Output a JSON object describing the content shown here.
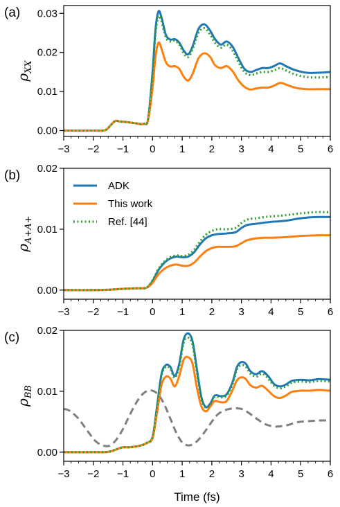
{
  "chart_data": [
    {
      "type": "line",
      "panel_label": "(a)",
      "ylabel_base": "ρ",
      "ylabel_sub": "XX",
      "xlim": [
        -3,
        6
      ],
      "ylim": [
        -0.0015,
        0.032
      ],
      "x_ticks": [
        -3,
        -2,
        -1,
        0,
        1,
        2,
        3,
        4,
        5,
        6
      ],
      "x_tick_labels": [
        "−3",
        "−2",
        "−1",
        "0",
        "1",
        "2",
        "3",
        "4",
        "5",
        "6"
      ],
      "y_ticks": [
        0,
        0.01,
        0.02,
        0.03
      ],
      "y_tick_labels": [
        "0.00",
        "0.01",
        "0.02",
        "0.03"
      ],
      "series": [
        {
          "name": "ADK",
          "color": "#1f77b4",
          "style": "solid",
          "x": [
            -3,
            -2,
            -1.6,
            -1.4,
            -1.25,
            -1.1,
            -0.9,
            -0.6,
            -0.3,
            -0.15,
            0,
            0.1,
            0.2,
            0.3,
            0.45,
            0.6,
            0.75,
            0.9,
            1.05,
            1.2,
            1.35,
            1.55,
            1.75,
            1.95,
            2.1,
            2.3,
            2.5,
            2.7,
            2.9,
            3.1,
            3.3,
            3.5,
            3.7,
            3.9,
            4.1,
            4.3,
            4.5,
            4.8,
            5.2,
            5.6,
            6
          ],
          "y": [
            0,
            0,
            0.0001,
            0.0015,
            0.0025,
            0.0023,
            0.0022,
            0.0019,
            0.0017,
            0.003,
            0.015,
            0.026,
            0.0305,
            0.029,
            0.0245,
            0.0233,
            0.0234,
            0.0225,
            0.0205,
            0.0195,
            0.0215,
            0.026,
            0.0272,
            0.0255,
            0.0235,
            0.022,
            0.0228,
            0.0215,
            0.0185,
            0.0158,
            0.015,
            0.0155,
            0.016,
            0.016,
            0.0165,
            0.0172,
            0.0165,
            0.0155,
            0.0148,
            0.0148,
            0.015
          ]
        },
        {
          "name": "This work",
          "color": "#ff7f0e",
          "style": "solid",
          "x": [
            -3,
            -2,
            -1.6,
            -1.4,
            -1.25,
            -1.1,
            -0.9,
            -0.6,
            -0.3,
            -0.15,
            0,
            0.1,
            0.2,
            0.3,
            0.45,
            0.6,
            0.75,
            0.9,
            1.05,
            1.2,
            1.35,
            1.55,
            1.75,
            1.95,
            2.1,
            2.3,
            2.5,
            2.7,
            2.9,
            3.1,
            3.3,
            3.5,
            3.7,
            3.9,
            4.1,
            4.3,
            4.5,
            4.8,
            5.2,
            5.6,
            6
          ],
          "y": [
            0,
            0,
            0.0001,
            0.0015,
            0.0025,
            0.0023,
            0.0022,
            0.0019,
            0.0017,
            0.0028,
            0.011,
            0.019,
            0.0225,
            0.021,
            0.0175,
            0.0164,
            0.0165,
            0.0158,
            0.0138,
            0.0128,
            0.0145,
            0.0185,
            0.0198,
            0.0188,
            0.0168,
            0.016,
            0.0165,
            0.0152,
            0.0128,
            0.0112,
            0.0105,
            0.0108,
            0.011,
            0.011,
            0.0115,
            0.0122,
            0.0118,
            0.011,
            0.0106,
            0.0106,
            0.0106
          ]
        },
        {
          "name": "Ref. [44]",
          "color": "#2ca02c",
          "style": "dotted",
          "x": [
            -3,
            -2,
            -1.6,
            -1.4,
            -1.25,
            -1.1,
            -0.9,
            -0.6,
            -0.3,
            -0.15,
            0,
            0.1,
            0.2,
            0.3,
            0.45,
            0.6,
            0.75,
            0.9,
            1.05,
            1.2,
            1.35,
            1.55,
            1.75,
            1.95,
            2.1,
            2.3,
            2.5,
            2.7,
            2.9,
            3.1,
            3.3,
            3.5,
            3.7,
            3.9,
            4.1,
            4.3,
            4.5,
            4.8,
            5.2,
            5.6,
            6
          ],
          "y": [
            0,
            0,
            0.0001,
            0.0015,
            0.0025,
            0.0023,
            0.0022,
            0.0019,
            0.0017,
            0.003,
            0.0145,
            0.025,
            0.0292,
            0.028,
            0.0238,
            0.0228,
            0.023,
            0.022,
            0.0198,
            0.0188,
            0.0208,
            0.025,
            0.0262,
            0.0245,
            0.0225,
            0.0212,
            0.022,
            0.0205,
            0.0175,
            0.015,
            0.0142,
            0.0146,
            0.015,
            0.015,
            0.0154,
            0.016,
            0.0154,
            0.0144,
            0.0137,
            0.0136,
            0.0137
          ]
        }
      ]
    },
    {
      "type": "line",
      "panel_label": "(b)",
      "ylabel_base": "ρ",
      "ylabel_sub": "A+A+",
      "xlim": [
        -3,
        6
      ],
      "ylim": [
        -0.0015,
        0.02
      ],
      "x_ticks": [
        -3,
        -2,
        -1,
        0,
        1,
        2,
        3,
        4,
        5,
        6
      ],
      "x_tick_labels": [
        "−3",
        "−2",
        "−1",
        "0",
        "1",
        "2",
        "3",
        "4",
        "5",
        "6"
      ],
      "y_ticks": [
        0,
        0.01,
        0.02
      ],
      "y_tick_labels": [
        "0.00",
        "0.01",
        "0.02"
      ],
      "legend": {
        "placement": "upper-left",
        "entries": [
          "ADK",
          "This work",
          "Ref. [44]"
        ]
      },
      "series": [
        {
          "name": "ADK",
          "color": "#1f77b4",
          "style": "solid",
          "x": [
            -3,
            -2,
            -1.5,
            -1,
            -0.5,
            -0.2,
            0,
            0.2,
            0.4,
            0.6,
            0.8,
            1.0,
            1.2,
            1.4,
            1.6,
            1.8,
            2.0,
            2.2,
            2.5,
            2.8,
            3.0,
            3.2,
            3.5,
            3.8,
            4.0,
            4.5,
            5,
            5.5,
            6
          ],
          "y": [
            0,
            0,
            5e-05,
            0.0002,
            0.0003,
            0.0004,
            0.0015,
            0.0033,
            0.0045,
            0.0052,
            0.0055,
            0.0054,
            0.0055,
            0.0062,
            0.0075,
            0.0085,
            0.009,
            0.0092,
            0.0093,
            0.0095,
            0.0102,
            0.0107,
            0.0109,
            0.0111,
            0.0112,
            0.0114,
            0.0118,
            0.012,
            0.012
          ]
        },
        {
          "name": "This work",
          "color": "#ff7f0e",
          "style": "solid",
          "x": [
            -3,
            -2,
            -1.5,
            -1,
            -0.5,
            -0.2,
            0,
            0.2,
            0.4,
            0.6,
            0.8,
            1.0,
            1.2,
            1.4,
            1.6,
            1.8,
            2.0,
            2.2,
            2.5,
            2.8,
            3.0,
            3.2,
            3.5,
            3.8,
            4.0,
            4.5,
            5,
            5.5,
            6
          ],
          "y": [
            0,
            0,
            5e-05,
            0.0002,
            0.0003,
            0.0004,
            0.0012,
            0.0026,
            0.0035,
            0.004,
            0.0042,
            0.004,
            0.004,
            0.0045,
            0.0055,
            0.0064,
            0.0069,
            0.0071,
            0.0071,
            0.0072,
            0.0077,
            0.0082,
            0.0085,
            0.0086,
            0.0086,
            0.0087,
            0.0089,
            0.009,
            0.009
          ]
        },
        {
          "name": "Ref. [44]",
          "color": "#2ca02c",
          "style": "dotted",
          "x": [
            -3,
            -2,
            -1.5,
            -1,
            -0.5,
            -0.2,
            0,
            0.2,
            0.4,
            0.6,
            0.8,
            1.0,
            1.2,
            1.4,
            1.6,
            1.8,
            2.0,
            2.2,
            2.5,
            2.8,
            3.0,
            3.2,
            3.5,
            3.8,
            4.0,
            4.5,
            5,
            5.5,
            6
          ],
          "y": [
            0,
            0,
            5e-05,
            0.0002,
            0.0003,
            0.0004,
            0.0016,
            0.0035,
            0.0047,
            0.0054,
            0.0057,
            0.0056,
            0.0058,
            0.0066,
            0.008,
            0.0091,
            0.0097,
            0.01,
            0.01,
            0.0102,
            0.011,
            0.0116,
            0.0118,
            0.012,
            0.0121,
            0.0123,
            0.0126,
            0.0128,
            0.0128
          ]
        }
      ]
    },
    {
      "type": "line",
      "panel_label": "(c)",
      "ylabel_base": "ρ",
      "ylabel_sub": "BB",
      "xlabel": "Time (fs)",
      "xlim": [
        -3,
        6
      ],
      "ylim": [
        -0.0015,
        0.02
      ],
      "x_ticks": [
        -3,
        -2,
        -1,
        0,
        1,
        2,
        3,
        4,
        5,
        6
      ],
      "x_tick_labels": [
        "−3",
        "−2",
        "−1",
        "0",
        "1",
        "2",
        "3",
        "4",
        "5",
        "6"
      ],
      "y_ticks": [
        0,
        0.01,
        0.02
      ],
      "y_tick_labels": [
        "0.00",
        "0.01",
        "0.02"
      ],
      "series": [
        {
          "color": "#7f7f7f",
          "style": "dashed",
          "x": [
            -3,
            -2.8,
            -2.5,
            -2.2,
            -1.9,
            -1.6,
            -1.4,
            -1.2,
            -1.0,
            -0.8,
            -0.6,
            -0.4,
            -0.2,
            0,
            0.2,
            0.4,
            0.6,
            0.8,
            1.0,
            1.2,
            1.4,
            1.6,
            1.8,
            2.0,
            2.2,
            2.4,
            2.6,
            2.8,
            3.0,
            3.2,
            3.4,
            3.6,
            3.8,
            4.0,
            4.2,
            4.4,
            4.6,
            4.8,
            5.0,
            5.3,
            5.6,
            6
          ],
          "y": [
            0.0071,
            0.0068,
            0.0055,
            0.0035,
            0.0017,
            0.001,
            0.0012,
            0.0022,
            0.0038,
            0.0058,
            0.0077,
            0.0092,
            0.01,
            0.0101,
            0.0094,
            0.0078,
            0.0055,
            0.0032,
            0.0016,
            0.0011,
            0.0014,
            0.0023,
            0.0036,
            0.005,
            0.0062,
            0.0068,
            0.0071,
            0.0072,
            0.0071,
            0.0066,
            0.0059,
            0.0052,
            0.0046,
            0.0043,
            0.0042,
            0.0043,
            0.0045,
            0.0048,
            0.005,
            0.0051,
            0.0052,
            0.0052
          ]
        },
        {
          "name": "ADK",
          "color": "#1f77b4",
          "style": "solid",
          "x": [
            -3,
            -2,
            -1.5,
            -1.2,
            -1.0,
            -0.8,
            -0.6,
            -0.4,
            -0.2,
            0,
            0.15,
            0.3,
            0.45,
            0.6,
            0.75,
            0.9,
            1.05,
            1.2,
            1.35,
            1.5,
            1.65,
            1.8,
            1.95,
            2.1,
            2.3,
            2.5,
            2.7,
            2.85,
            3.0,
            3.15,
            3.3,
            3.5,
            3.7,
            3.9,
            4.1,
            4.3,
            4.5,
            4.7,
            5.0,
            5.3,
            5.6,
            6
          ],
          "y": [
            0,
            0,
            5e-05,
            0.0005,
            0.0008,
            0.0008,
            0.0009,
            0.0011,
            0.0015,
            0.0025,
            0.0075,
            0.0128,
            0.0143,
            0.014,
            0.0125,
            0.0145,
            0.0185,
            0.0195,
            0.0182,
            0.0135,
            0.009,
            0.0074,
            0.008,
            0.0093,
            0.0092,
            0.0095,
            0.0115,
            0.014,
            0.0148,
            0.0145,
            0.0133,
            0.0128,
            0.0133,
            0.0125,
            0.0112,
            0.0108,
            0.0111,
            0.0117,
            0.0119,
            0.0118,
            0.012,
            0.0119
          ]
        },
        {
          "name": "This work",
          "color": "#ff7f0e",
          "style": "solid",
          "x": [
            -3,
            -2,
            -1.5,
            -1.2,
            -1.0,
            -0.8,
            -0.6,
            -0.4,
            -0.2,
            0,
            0.15,
            0.3,
            0.45,
            0.6,
            0.75,
            0.9,
            1.05,
            1.2,
            1.35,
            1.5,
            1.65,
            1.8,
            1.95,
            2.1,
            2.3,
            2.5,
            2.7,
            2.85,
            3.0,
            3.15,
            3.3,
            3.5,
            3.7,
            3.9,
            4.1,
            4.3,
            4.5,
            4.7,
            5.0,
            5.3,
            5.6,
            6
          ],
          "y": [
            0,
            0,
            5e-05,
            0.0005,
            0.0008,
            0.0008,
            0.0009,
            0.0011,
            0.0015,
            0.0023,
            0.0065,
            0.011,
            0.0124,
            0.0121,
            0.0108,
            0.0125,
            0.0152,
            0.0156,
            0.0145,
            0.0105,
            0.0075,
            0.0067,
            0.0075,
            0.0084,
            0.0082,
            0.0084,
            0.0102,
            0.0118,
            0.0123,
            0.012,
            0.011,
            0.0106,
            0.0109,
            0.0101,
            0.0092,
            0.0089,
            0.0093,
            0.0099,
            0.0101,
            0.0101,
            0.0102,
            0.0101
          ]
        },
        {
          "name": "Ref. [44]",
          "color": "#2ca02c",
          "style": "dotted",
          "x": [
            -3,
            -2,
            -1.5,
            -1.2,
            -1.0,
            -0.8,
            -0.6,
            -0.4,
            -0.2,
            0,
            0.15,
            0.3,
            0.45,
            0.6,
            0.75,
            0.9,
            1.05,
            1.2,
            1.35,
            1.5,
            1.65,
            1.8,
            1.95,
            2.1,
            2.3,
            2.5,
            2.7,
            2.85,
            3.0,
            3.15,
            3.3,
            3.5,
            3.7,
            3.9,
            4.1,
            4.3,
            4.5,
            4.7,
            5.0,
            5.3,
            5.6,
            6
          ],
          "y": [
            0,
            0,
            5e-05,
            0.0005,
            0.0008,
            0.0008,
            0.0009,
            0.0011,
            0.0015,
            0.0025,
            0.0073,
            0.0125,
            0.014,
            0.0137,
            0.0122,
            0.0141,
            0.018,
            0.0188,
            0.0176,
            0.013,
            0.0087,
            0.0073,
            0.0079,
            0.0091,
            0.009,
            0.0093,
            0.0112,
            0.0136,
            0.0143,
            0.014,
            0.0129,
            0.0124,
            0.0129,
            0.0121,
            0.0109,
            0.0105,
            0.0108,
            0.0114,
            0.0116,
            0.0115,
            0.0117,
            0.0116
          ]
        }
      ]
    }
  ]
}
